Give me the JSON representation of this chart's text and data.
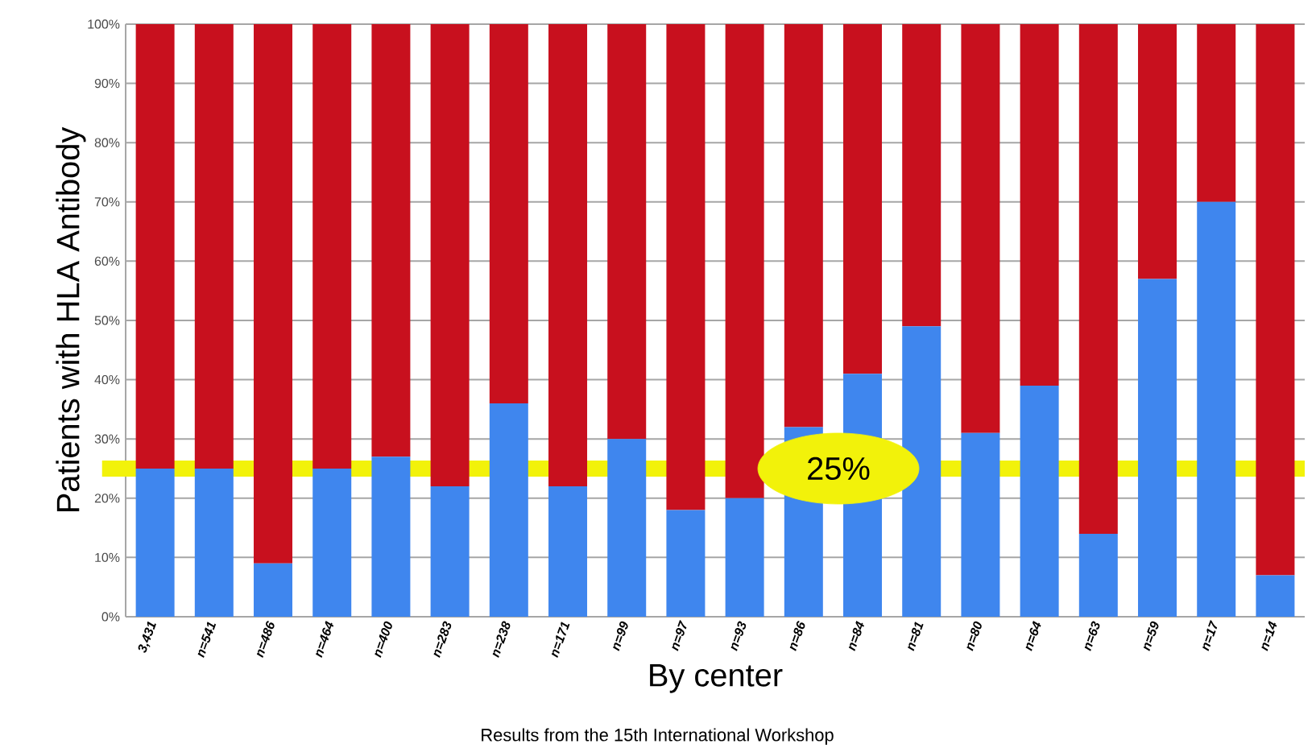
{
  "chart_data": {
    "type": "bar",
    "stacked": true,
    "xlabel": "By center",
    "ylabel": "Patients with HLA Antibody",
    "categories": [
      "3,431",
      "n=541",
      "n=486",
      "n=464",
      "n=400",
      "n=283",
      "n=238",
      "n=171",
      "n=99",
      "n=97",
      "n=93",
      "n=86",
      "n=84",
      "n=81",
      "n=80",
      "n=64",
      "n=63",
      "n=59",
      "n=17",
      "n=14"
    ],
    "series": [
      {
        "color": "#3f86ee",
        "values": [
          25,
          25,
          9,
          25,
          27,
          22,
          36,
          22,
          30,
          18,
          20,
          32,
          41,
          49,
          31,
          39,
          14,
          57,
          70,
          7
        ]
      },
      {
        "color": "#c8101e",
        "values": [
          75,
          75,
          91,
          75,
          73,
          78,
          64,
          78,
          70,
          82,
          80,
          68,
          59,
          51,
          69,
          61,
          86,
          43,
          30,
          93
        ]
      }
    ],
    "ylim": [
      0,
      100
    ],
    "yticks": [
      {
        "value": 0,
        "label": "0%"
      },
      {
        "value": 10,
        "label": "10%"
      },
      {
        "value": 20,
        "label": "20%"
      },
      {
        "value": 30,
        "label": "30%"
      },
      {
        "value": 40,
        "label": "40%"
      },
      {
        "value": 50,
        "label": "50%"
      },
      {
        "value": 60,
        "label": "60%"
      },
      {
        "value": 70,
        "label": "70%"
      },
      {
        "value": 80,
        "label": "80%"
      },
      {
        "value": 90,
        "label": "90%"
      },
      {
        "value": 100,
        "label": "100%"
      }
    ],
    "grid": "y",
    "ref_lines": [
      {
        "axis": "y",
        "value": 25,
        "label": "25%",
        "color": "#f2f20a"
      }
    ],
    "annotations": [
      "Results from the 15th International Workshop"
    ]
  }
}
